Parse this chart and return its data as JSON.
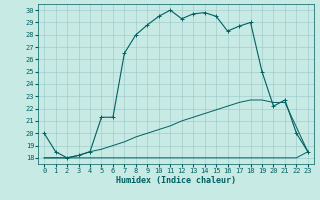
{
  "xlabel": "Humidex (Indice chaleur)",
  "xlim": [
    -0.5,
    23.5
  ],
  "ylim": [
    17.5,
    30.5
  ],
  "yticks": [
    18,
    19,
    20,
    21,
    22,
    23,
    24,
    25,
    26,
    27,
    28,
    29,
    30
  ],
  "xticks": [
    0,
    1,
    2,
    3,
    4,
    5,
    6,
    7,
    8,
    9,
    10,
    11,
    12,
    13,
    14,
    15,
    16,
    17,
    18,
    19,
    20,
    21,
    22,
    23
  ],
  "background_color": "#c8eae4",
  "grid_color": "#a0cccc",
  "line_color": "#006060",
  "line1_x": [
    0,
    1,
    2,
    3,
    4,
    5,
    6,
    7,
    8,
    9,
    10,
    11,
    12,
    13,
    14,
    15,
    16,
    17,
    18,
    19,
    20,
    21,
    22,
    23
  ],
  "line1_y": [
    20.0,
    18.5,
    18.0,
    18.2,
    18.5,
    21.3,
    21.3,
    26.5,
    28.0,
    28.8,
    29.5,
    30.0,
    29.3,
    29.7,
    29.8,
    29.5,
    28.3,
    28.7,
    29.0,
    25.0,
    22.2,
    22.7,
    20.0,
    18.5
  ],
  "line2_x": [
    0,
    2,
    3,
    4,
    5,
    6,
    7,
    8,
    9,
    10,
    11,
    12,
    13,
    14,
    15,
    16,
    17,
    18,
    19,
    20,
    21,
    22,
    23
  ],
  "line2_y": [
    18.0,
    18.0,
    18.2,
    18.5,
    18.7,
    19.0,
    19.3,
    19.7,
    20.0,
    20.3,
    20.6,
    21.0,
    21.3,
    21.6,
    21.9,
    22.2,
    22.5,
    22.7,
    22.7,
    22.5,
    22.5,
    20.5,
    18.5
  ],
  "line3_x": [
    0,
    18,
    22,
    23
  ],
  "line3_y": [
    18.0,
    18.0,
    18.0,
    18.5
  ]
}
